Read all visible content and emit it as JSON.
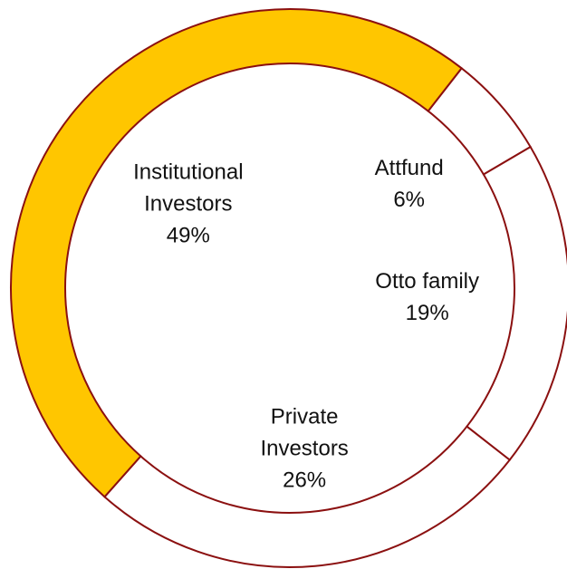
{
  "chart_data": {
    "type": "donut",
    "categories": [
      "Attfund",
      "Otto family",
      "Private Investors",
      "Institutional Investors"
    ],
    "values": [
      6,
      19,
      26,
      49
    ],
    "value_labels": [
      "6%",
      "19%",
      "26%",
      "49%"
    ],
    "colors": [
      "#ffffff",
      "#ffffff",
      "#ffffff",
      "#ffc600"
    ],
    "edge_color": "#8b1010"
  }
}
